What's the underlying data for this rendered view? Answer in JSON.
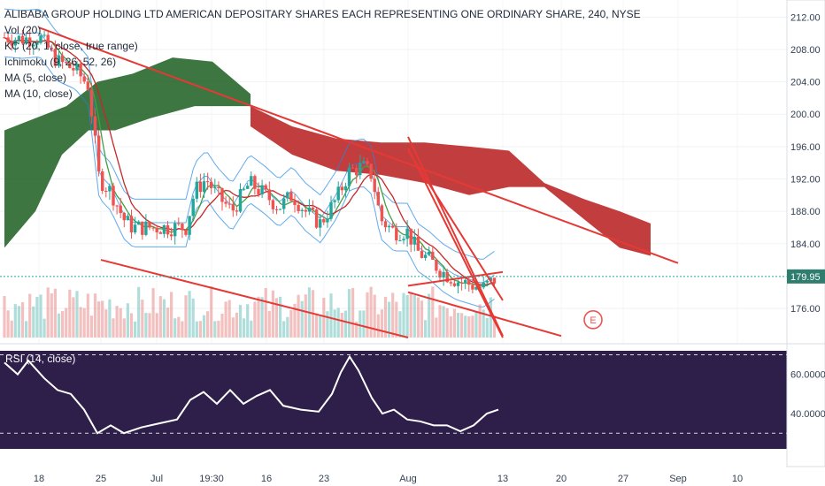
{
  "chart_data": [
    {
      "type": "candlestick",
      "title": "ALIBABA GROUP HOLDING LTD AMERICAN DEPOSITARY SHARES EACH REPRESENTING ONE ORDINARY SHARE, 240, NYSE",
      "legend": [
        "Vol (20)",
        "KC (20, 1, close, true range)",
        "Ichimoku (9, 26, 52, 26)",
        "MA (5, close)",
        "MA (10, close)"
      ],
      "y_ticks": [
        "212.00",
        "208.00",
        "204.00",
        "200.00",
        "196.00",
        "192.00",
        "188.00",
        "184.00",
        "176.00"
      ],
      "ylim": [
        172.4,
        212.8
      ],
      "last_price": "179.95",
      "earnings_marker": "E",
      "x_ticks": [
        "18",
        "25",
        "Jul",
        "19:30",
        "16",
        "23",
        "Aug",
        "13",
        "20",
        "27",
        "Sep",
        "10"
      ],
      "colors": {
        "up": "#26a69a",
        "down": "#ef5350",
        "cloud_bull": "#1b5e20",
        "cloud_bear": "#b71c1c",
        "trendline": "#e53935",
        "rsi_line": "#ffffff",
        "rsi_bg": "#2e1f4a",
        "last_price_bg": "#2e7d6f"
      },
      "trendlines": [
        {
          "from": [
            "18",
            210.7
          ],
          "to": [
            "Sep",
            181.6
          ]
        },
        {
          "from": [
            "25",
            182.0
          ],
          "to": [
            "Aug",
            172.4
          ]
        },
        {
          "from": [
            "Aug",
            178.0
          ],
          "to": [
            "20",
            172.6
          ]
        },
        {
          "from": [
            "Aug",
            195.8
          ],
          "to": [
            "13",
            172.4
          ]
        },
        {
          "from": [
            "Aug",
            197.2
          ],
          "to": [
            "13",
            172.6
          ]
        },
        {
          "from": [
            "Aug",
            195.5
          ],
          "to": [
            "13",
            177.0
          ]
        },
        {
          "from": [
            "Aug",
            178.8
          ],
          "to": [
            "13",
            180.5
          ]
        }
      ]
    },
    {
      "type": "line",
      "title": "RSI (14, close)",
      "y_ticks": [
        "60.0000",
        "40.0000"
      ],
      "ylim": [
        22,
        72
      ],
      "bands": [
        70,
        30
      ]
    }
  ]
}
